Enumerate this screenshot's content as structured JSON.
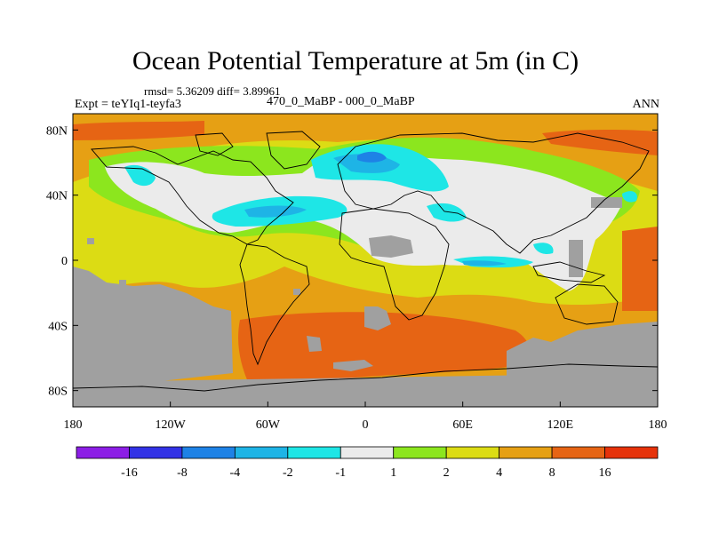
{
  "header": {
    "title": "Ocean Potential Temperature at 5m (in C)",
    "stats": "rmsd= 5.36209 diff= 3.89961",
    "experiment": "Expt = teYIq1-teyfa3",
    "subtitle": "470_0_MaBP - 000_0_MaBP",
    "season": "ANN"
  },
  "map": {
    "projection": "cylindrical equidistant",
    "lon_range": [
      -180,
      180
    ],
    "lat_range": [
      -90,
      90
    ],
    "x_ticks": [
      "180",
      "120W",
      "60W",
      "0",
      "60E",
      "120E",
      "180"
    ],
    "y_ticks": [
      "80N",
      "40N",
      "0",
      "40S",
      "80S"
    ],
    "land_color": "#a0a0a0"
  },
  "colorbar": {
    "labels": [
      "-16",
      "-8",
      "-4",
      "-2",
      "-1",
      "1",
      "2",
      "4",
      "8",
      "16"
    ],
    "colors": [
      "#8c1ee6",
      "#3232e6",
      "#1e82e6",
      "#1eb4e6",
      "#1ee6e6",
      "#ebebeb",
      "#8ce61e",
      "#dcdc14",
      "#e6a014",
      "#e66414",
      "#e6320a"
    ]
  }
}
